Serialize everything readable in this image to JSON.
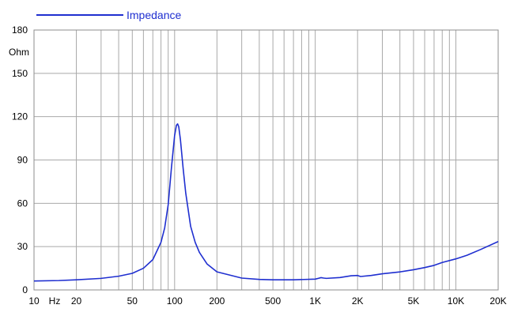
{
  "chart_data": {
    "type": "line",
    "title": "",
    "xlabel": "",
    "ylabel": "",
    "x_scale": "log",
    "xlim": [
      10,
      20000
    ],
    "ylim": [
      0,
      180
    ],
    "grid": true,
    "legend_position": "top-left",
    "x_unit_label": "Hz",
    "y_unit_label": "Ohm",
    "x_ticks": [
      {
        "value": 10,
        "label": "10"
      },
      {
        "value": 20,
        "label": "20"
      },
      {
        "value": 50,
        "label": "50"
      },
      {
        "value": 100,
        "label": "100"
      },
      {
        "value": 200,
        "label": "200"
      },
      {
        "value": 500,
        "label": "500"
      },
      {
        "value": 1000,
        "label": "1K"
      },
      {
        "value": 2000,
        "label": "2K"
      },
      {
        "value": 5000,
        "label": "5K"
      },
      {
        "value": 10000,
        "label": "10K"
      },
      {
        "value": 20000,
        "label": "20K"
      }
    ],
    "y_ticks": [
      {
        "value": 0,
        "label": "0"
      },
      {
        "value": 30,
        "label": "30"
      },
      {
        "value": 60,
        "label": "60"
      },
      {
        "value": 90,
        "label": "90"
      },
      {
        "value": 120,
        "label": "120"
      },
      {
        "value": 150,
        "label": "150"
      },
      {
        "value": 180,
        "label": "180"
      }
    ],
    "series": [
      {
        "name": "Impedance",
        "color": "#1f2fd0",
        "x": [
          10,
          15,
          20,
          30,
          40,
          50,
          60,
          70,
          80,
          85,
          90,
          95,
          100,
          103,
          105,
          107,
          110,
          115,
          120,
          130,
          140,
          150,
          170,
          200,
          300,
          400,
          500,
          700,
          1000,
          1050,
          1100,
          1150,
          1200,
          1500,
          1800,
          2000,
          2100,
          2500,
          3000,
          4000,
          5000,
          6000,
          7000,
          8000,
          10000,
          12000,
          15000,
          20000
        ],
        "values": [
          6.2,
          6.5,
          7,
          8,
          9.5,
          11.5,
          15,
          21,
          33,
          43,
          59,
          85,
          107,
          114,
          115,
          113,
          104,
          84,
          67,
          44,
          33,
          26,
          18,
          12.5,
          8.2,
          7.3,
          7,
          7,
          7.5,
          8,
          8.5,
          8.2,
          8,
          8.6,
          9.8,
          10,
          9.3,
          10,
          11.2,
          12.5,
          14,
          15.5,
          17,
          19,
          21.5,
          24,
          28,
          33.5
        ]
      }
    ]
  }
}
